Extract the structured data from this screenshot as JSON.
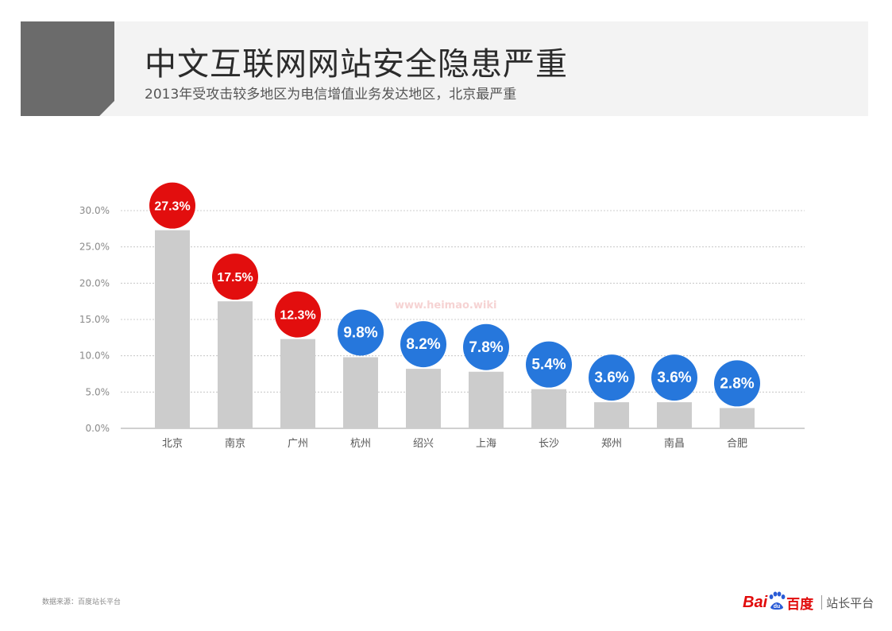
{
  "header": {
    "title": "中文互联网网站安全隐患严重",
    "subtitle": "2013年受攻击较多地区为电信增值业务发达地区，北京最严重"
  },
  "watermark": "www.heimao.wiki",
  "footer": {
    "source": "数据来源：百度站长平台",
    "logo_bai": "Bai",
    "logo_du": "du",
    "logo_cn": "百度",
    "logo_platform": "站长平台"
  },
  "chart_data": {
    "type": "bar",
    "categories": [
      "北京",
      "南京",
      "广州",
      "杭州",
      "绍兴",
      "上海",
      "长沙",
      "郑州",
      "南昌",
      "合肥"
    ],
    "values": [
      27.3,
      17.5,
      12.3,
      9.8,
      8.2,
      7.8,
      5.4,
      3.6,
      3.6,
      2.8
    ],
    "data_labels": [
      "27.3%",
      "17.5%",
      "12.3%",
      "9.8%",
      "8.2%",
      "7.8%",
      "5.4%",
      "3.6%",
      "3.6%",
      "2.8%"
    ],
    "yticks": [
      0,
      5,
      10,
      15,
      20,
      25,
      30
    ],
    "ytick_labels": [
      "0.0%",
      "5.0%",
      "10.0%",
      "15.0%",
      "20.0%",
      "25.0%",
      "30.0%"
    ],
    "ylim": [
      0,
      30
    ],
    "grid": true,
    "colors": {
      "bar": "#cccccc",
      "highlight": "#e20e0e",
      "normal": "#2677dc",
      "grid": "#bdbdbd",
      "axis": "#a0a0a0"
    },
    "highlight_count": 3
  }
}
